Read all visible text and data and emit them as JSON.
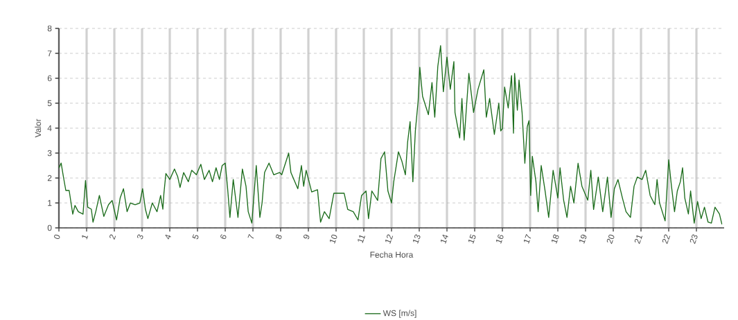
{
  "chart_data": {
    "type": "line",
    "xlabel": "Fecha Hora",
    "ylabel": "Valor",
    "x": [
      0,
      0.08,
      0.17,
      0.25,
      0.37,
      0.5,
      0.58,
      0.7,
      0.87,
      0.96,
      1.04,
      1.17,
      1.23,
      1.33,
      1.46,
      1.62,
      1.79,
      1.92,
      2.08,
      2.21,
      2.33,
      2.46,
      2.58,
      2.75,
      2.92,
      3.02,
      3.12,
      3.21,
      3.37,
      3.54,
      3.67,
      3.75,
      3.79,
      3.86,
      4.0,
      4.17,
      4.29,
      4.37,
      4.5,
      4.67,
      4.79,
      4.96,
      5.12,
      5.25,
      5.42,
      5.54,
      5.67,
      5.79,
      5.89,
      6.0,
      6.08,
      6.17,
      6.29,
      6.46,
      6.62,
      6.75,
      6.83,
      6.96,
      7.12,
      7.25,
      7.33,
      7.42,
      7.58,
      7.75,
      7.96,
      8.04,
      8.29,
      8.37,
      8.62,
      8.75,
      8.83,
      8.92,
      9.12,
      9.33,
      9.44,
      9.58,
      9.75,
      9.92,
      10.08,
      10.29,
      10.42,
      10.62,
      10.79,
      10.92,
      11.08,
      11.17,
      11.29,
      11.5,
      11.62,
      11.75,
      11.87,
      12.0,
      12.08,
      12.25,
      12.37,
      12.5,
      12.58,
      12.67,
      12.77,
      12.86,
      12.96,
      13.02,
      13.12,
      13.33,
      13.46,
      13.56,
      13.67,
      13.77,
      13.87,
      14.0,
      14.12,
      14.25,
      14.29,
      14.46,
      14.54,
      14.62,
      14.79,
      14.96,
      15.12,
      15.33,
      15.42,
      15.54,
      15.71,
      15.87,
      15.94,
      16.0,
      16.08,
      16.21,
      16.33,
      16.4,
      16.44,
      16.54,
      16.6,
      16.71,
      16.81,
      16.9,
      16.96,
      17.02,
      17.08,
      17.21,
      17.29,
      17.4,
      17.54,
      17.67,
      17.83,
      18.0,
      18.08,
      18.21,
      18.33,
      18.46,
      18.58,
      18.73,
      18.87,
      19.08,
      19.19,
      19.29,
      19.46,
      19.62,
      19.79,
      19.92,
      20.04,
      20.17,
      20.33,
      20.46,
      20.62,
      20.75,
      20.87,
      21.04,
      21.17,
      21.33,
      21.5,
      21.58,
      21.67,
      21.87,
      22.0,
      22.1,
      22.21,
      22.31,
      22.42,
      22.5,
      22.58,
      22.71,
      22.79,
      22.92,
      23.04,
      23.17,
      23.29,
      23.42,
      23.54,
      23.67,
      23.83,
      23.92
    ],
    "series": [
      {
        "name": "WS [m/s]",
        "color": "#1a6b1a",
        "values": [
          2.4,
          2.6,
          2.0,
          1.5,
          1.5,
          0.55,
          0.9,
          0.65,
          0.55,
          1.9,
          0.83,
          0.75,
          0.23,
          0.65,
          1.3,
          0.46,
          0.93,
          1.1,
          0.32,
          1.2,
          1.57,
          0.65,
          1.0,
          0.93,
          1.0,
          1.57,
          0.75,
          0.37,
          1.0,
          0.65,
          1.3,
          0.75,
          1.4,
          2.18,
          1.94,
          2.36,
          2.04,
          1.62,
          2.22,
          1.85,
          2.31,
          2.13,
          2.55,
          1.94,
          2.31,
          1.85,
          2.41,
          1.94,
          2.5,
          2.6,
          1.67,
          0.42,
          1.94,
          0.42,
          2.36,
          1.67,
          0.65,
          0.19,
          2.5,
          0.42,
          1.0,
          2.22,
          2.6,
          2.13,
          2.22,
          2.13,
          3.0,
          2.22,
          1.57,
          2.5,
          1.67,
          2.31,
          1.44,
          1.53,
          0.23,
          0.65,
          0.37,
          1.39,
          1.39,
          1.39,
          0.74,
          0.65,
          0.32,
          1.3,
          1.48,
          0.37,
          1.48,
          1.1,
          2.78,
          3.05,
          1.48,
          1.0,
          1.85,
          3.05,
          2.69,
          2.13,
          3.43,
          4.26,
          1.85,
          3.89,
          5.09,
          6.44,
          5.28,
          4.54,
          5.83,
          4.44,
          6.48,
          7.31,
          5.46,
          6.85,
          5.56,
          6.67,
          4.63,
          3.61,
          5.19,
          3.52,
          6.2,
          4.63,
          5.56,
          6.34,
          4.44,
          5.19,
          3.75,
          5.0,
          3.89,
          3.98,
          5.65,
          4.81,
          6.11,
          3.8,
          6.2,
          4.72,
          5.93,
          4.63,
          2.59,
          4.07,
          4.3,
          1.3,
          2.87,
          1.85,
          0.65,
          2.5,
          1.48,
          0.42,
          2.31,
          1.2,
          2.41,
          1.11,
          0.42,
          1.67,
          1.0,
          2.59,
          1.67,
          1.11,
          2.31,
          0.74,
          2.04,
          0.65,
          2.04,
          0.42,
          1.57,
          1.94,
          1.2,
          0.65,
          0.42,
          1.67,
          2.04,
          1.94,
          2.31,
          1.3,
          0.93,
          1.94,
          1.0,
          0.28,
          2.73,
          1.67,
          0.65,
          1.48,
          1.85,
          2.41,
          1.2,
          0.56,
          1.48,
          0.19,
          1.06,
          0.37,
          0.83,
          0.23,
          0.19,
          0.83,
          0.56,
          0.14
        ]
      }
    ],
    "xlim": [
      0,
      24
    ],
    "ylim": [
      0,
      8
    ],
    "xticks": [
      0,
      1,
      2,
      3,
      4,
      5,
      6,
      7,
      8,
      9,
      10,
      11,
      12,
      13,
      14,
      15,
      16,
      17,
      18,
      19,
      20,
      21,
      22,
      23
    ],
    "yticks": [
      0,
      1,
      2,
      3,
      4,
      5,
      6,
      7,
      8
    ],
    "grid": true,
    "legend": "bottom"
  }
}
